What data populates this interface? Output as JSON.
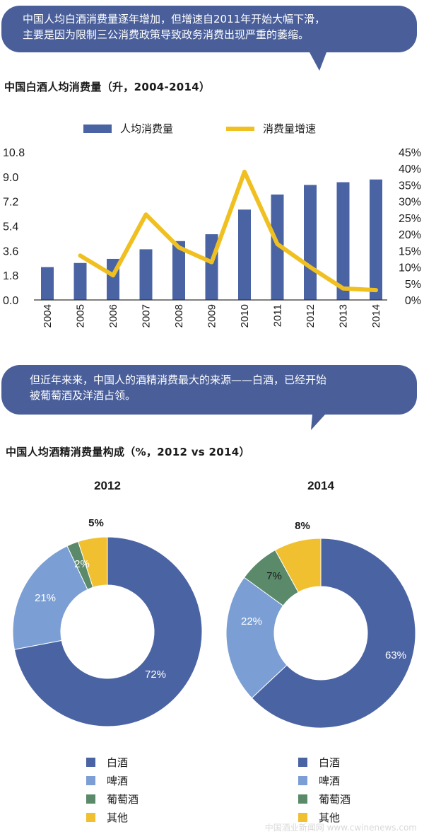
{
  "callout1": {
    "line1": "中国人均白酒消费量逐年增加，但增速自2011年开始大幅下滑，",
    "line2": "主要是因为限制三公消费政策导致政务消费出现严重的萎缩。"
  },
  "callout2": {
    "line1": "但近年来来，中国人的酒精消费最大的来源——白酒，已经开始",
    "line2": "被葡萄酒及洋酒占领。"
  },
  "colors": {
    "callout_bg": "#4a5f9a",
    "baijiu": "#4a63a3",
    "beer": "#7b9fd4",
    "wine": "#5a8a6a",
    "other": "#f0c030",
    "growth_line": "#f0c020"
  },
  "chart_data": [
    {
      "type": "bar",
      "title": "中国白酒人均消费量（升，2004-2014）",
      "categories": [
        "2004",
        "2005",
        "2006",
        "2007",
        "2008",
        "2009",
        "2010",
        "2011",
        "2012",
        "2013",
        "2014"
      ],
      "series": [
        {
          "name": "人均消费量",
          "type": "bar",
          "axis": "left",
          "values": [
            2.4,
            2.7,
            3.0,
            3.7,
            4.3,
            4.8,
            6.6,
            7.7,
            8.4,
            8.6,
            8.8
          ]
        },
        {
          "name": "消费量增速",
          "type": "line",
          "axis": "right",
          "unit": "%",
          "values": [
            null,
            13.5,
            7.5,
            26.0,
            16.0,
            11.5,
            39.0,
            17.0,
            10.0,
            3.5,
            3.0
          ]
        }
      ],
      "left_axis": {
        "ticks": [
          "10.8",
          "9.0",
          "7.2",
          "5.4",
          "3.6",
          "1.8",
          "0.0"
        ],
        "range": [
          0,
          10.8
        ]
      },
      "right_axis": {
        "ticks": [
          "45%",
          "40%",
          "35%",
          "30%",
          "25%",
          "20%",
          "15%",
          "10%",
          "5%",
          "0%"
        ],
        "range": [
          0,
          45
        ]
      },
      "legend_position": "top"
    },
    {
      "type": "pie",
      "title": "中国人均酒精消费量构成（%，2012 vs 2014）",
      "donut_charts": [
        {
          "label": "2012",
          "slices": [
            {
              "name": "白酒",
              "value": 72,
              "label": "72%"
            },
            {
              "name": "啤酒",
              "value": 21,
              "label": "21%"
            },
            {
              "name": "葡萄酒",
              "value": 2,
              "label": "2%"
            },
            {
              "name": "其他",
              "value": 5,
              "label": "5%"
            }
          ]
        },
        {
          "label": "2014",
          "slices": [
            {
              "name": "白酒",
              "value": 63,
              "label": "63%"
            },
            {
              "name": "啤酒",
              "value": 22,
              "label": "22%"
            },
            {
              "name": "葡萄酒",
              "value": 7,
              "label": "7%"
            },
            {
              "name": "其他",
              "value": 8,
              "label": "8%"
            }
          ]
        }
      ],
      "legend": [
        "白酒",
        "啤酒",
        "葡萄酒",
        "其他"
      ]
    }
  ],
  "watermark": "中国酒业新闻网 www.cwinenews.com"
}
